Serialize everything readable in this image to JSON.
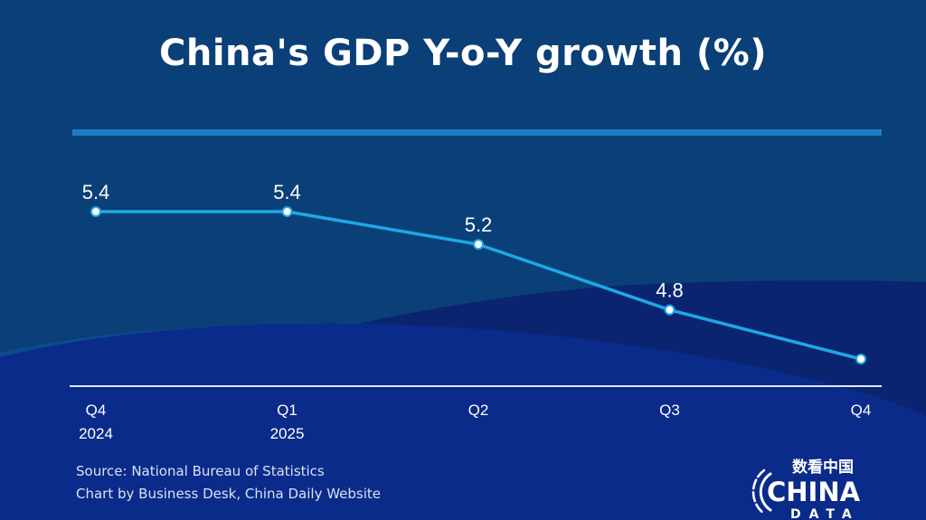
{
  "title": "China's GDP Y-o-Y growth (%)",
  "source_lines": [
    "Source: National Bureau of Statistics",
    "Chart by Business Desk, China Daily Website"
  ],
  "logo": {
    "chinese": "数看中国",
    "word": "CHINA",
    "sub": "DATA"
  },
  "colors": {
    "background": "#0a3f78",
    "line": "#1ea8e6",
    "rule": "#1c7dc4",
    "axis": "#dfe8f5"
  },
  "chart_data": {
    "type": "line",
    "title": "China's GDP Y-o-Y growth (%)",
    "categories": [
      "Q4\n2024",
      "Q1\n2025",
      "Q2",
      "Q3",
      "Q4"
    ],
    "category_lines": [
      [
        "Q4",
        "2024"
      ],
      [
        "Q1",
        "2025"
      ],
      [
        "Q2"
      ],
      [
        "Q3"
      ],
      [
        "Q4"
      ]
    ],
    "series": [
      {
        "name": "GDP Y-o-Y growth (%)",
        "values": [
          5.4,
          5.4,
          5.2,
          4.8,
          4.5
        ]
      }
    ],
    "data_labels": [
      "5.4",
      "5.4",
      "5.2",
      "4.8",
      null
    ],
    "xlabel": "",
    "ylabel": "",
    "ylim": [
      3.95,
      5.55
    ],
    "grid": false,
    "legend": "none"
  }
}
